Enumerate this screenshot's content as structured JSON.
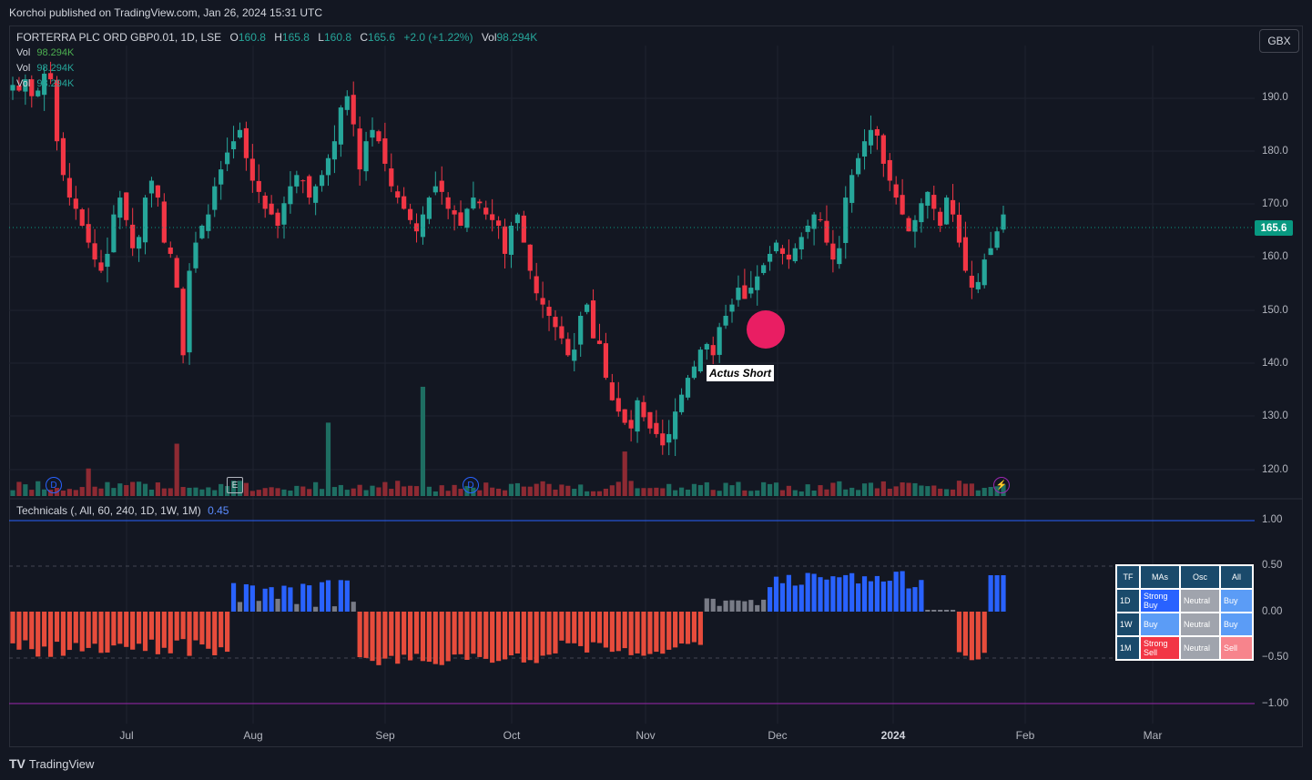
{
  "header": {
    "publisher": "Korchoi published on TradingView.com, Jan 26, 2024 15:31 UTC"
  },
  "legend": {
    "symbol": "FORTERRA PLC ORD GBP0.01, 1D, LSE",
    "o_label": "O",
    "o_value": "160.8",
    "h_label": "H",
    "h_value": "165.8",
    "l_label": "L",
    "l_value": "160.8",
    "c_label": "C",
    "c_value": "165.6",
    "change": "+2.0 (+1.22%)",
    "vol_label": "Vol",
    "vol_value": "98.294K"
  },
  "vol_lines": [
    {
      "label": "Vol",
      "value": "98.294K",
      "color": "#4caf50"
    },
    {
      "label": "Vol",
      "value": "98.294K",
      "color": "#26a69a"
    },
    {
      "label": "Vol",
      "value": "98.294K",
      "color": "#26a69a"
    }
  ],
  "currency_button": "GBX",
  "last_price": "165.6",
  "price_axis": [
    "190.0",
    "180.0",
    "170.0",
    "160.0",
    "150.0",
    "140.0",
    "130.0",
    "120.0"
  ],
  "time_axis": [
    "Jul",
    "Aug",
    "Sep",
    "Oct",
    "Nov",
    "Dec",
    "2024",
    "Feb",
    "Mar"
  ],
  "markers": [
    "D",
    "E",
    "D",
    "⚡"
  ],
  "annotation": "Actus Short",
  "indicator": {
    "title": "Technicals (, All, 60, 240, 1D, 1W, 1M)",
    "value": "0.45",
    "axis": [
      "1.00",
      "0.50",
      "0.00",
      "−0.50",
      "−1.00"
    ]
  },
  "tech_table": {
    "headers": [
      "TF",
      "MAs",
      "Osc",
      "All"
    ],
    "rows": [
      {
        "tf": "1D",
        "mas": "Strong Buy",
        "osc": "Neutral",
        "all": "Buy"
      },
      {
        "tf": "1W",
        "mas": "Buy",
        "osc": "Neutral",
        "all": "Buy"
      },
      {
        "tf": "1M",
        "mas": "Strong Sell",
        "osc": "Neutral",
        "all": "Sell"
      }
    ]
  },
  "footer": {
    "brand": "TradingView"
  },
  "colors": {
    "up": "#26a69a",
    "down": "#f23645",
    "bg": "#131722",
    "osc_pos": "#2962ff",
    "osc_neg": "#e74c3c",
    "osc_neutral": "#787b86"
  },
  "chart_data": {
    "type": "candlestick",
    "symbol": "FORTERRA PLC ORD GBP0.01",
    "interval": "1D",
    "ylim": [
      115,
      195
    ],
    "x_categories": [
      "Jul",
      "Aug",
      "Sep",
      "Oct",
      "Nov",
      "Dec",
      "2024",
      "Feb",
      "Mar"
    ],
    "close_series": [
      188,
      187,
      189,
      186,
      187,
      190,
      189,
      178,
      172,
      168,
      166,
      163,
      160,
      157,
      155,
      158,
      165,
      168,
      164,
      159,
      161,
      168,
      171,
      168,
      160,
      158,
      152,
      140,
      155,
      160,
      163,
      165,
      170,
      173,
      176,
      178,
      180,
      175,
      171,
      169,
      166,
      165,
      163,
      167,
      170,
      172,
      171,
      168,
      170,
      172,
      175,
      178,
      184,
      186,
      181,
      173,
      178,
      180,
      178,
      174,
      170,
      168,
      166,
      164,
      162,
      165,
      168,
      170,
      169,
      166,
      165,
      163,
      166,
      168,
      167,
      165,
      164,
      163,
      158,
      163,
      165,
      160,
      155,
      151,
      149,
      147,
      145,
      143,
      140,
      141,
      147,
      149,
      143,
      142,
      136,
      132,
      130,
      128,
      127,
      132,
      129,
      127,
      126,
      124,
      126,
      130,
      133,
      136,
      138,
      141,
      142,
      140,
      145,
      147,
      149,
      152,
      150,
      152,
      154,
      156,
      158,
      160,
      158,
      157,
      159,
      161,
      163,
      165,
      164,
      160,
      157,
      159,
      168,
      172,
      175,
      178,
      180,
      179,
      174,
      171,
      168,
      165,
      162,
      164,
      167,
      169,
      166,
      163,
      168,
      165,
      160,
      155,
      152,
      153,
      157,
      159,
      162,
      165
    ]
  }
}
